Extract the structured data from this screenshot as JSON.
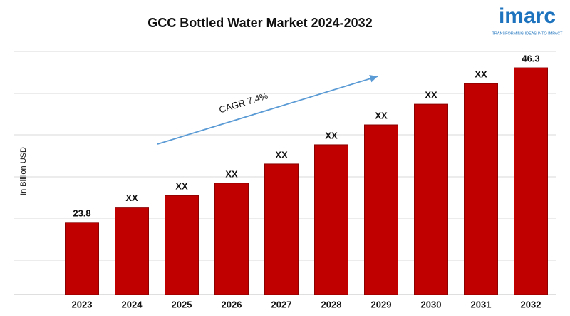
{
  "chart_data": {
    "type": "bar",
    "title": "GCC Bottled Water Market 2024-2032",
    "y_label": "In Billion USD",
    "annotation": "CAGR 7.4%",
    "logo": {
      "name": "imarc",
      "tagline": "TRANSFORMING IDEAS INTO IMPACT"
    },
    "categories": [
      "2023",
      "2024",
      "2025",
      "2026",
      "2027",
      "2028",
      "2029",
      "2030",
      "2031",
      "2032"
    ],
    "values": [
      23.8,
      26.0,
      27.7,
      29.5,
      32.3,
      35.1,
      38.0,
      41.0,
      44.0,
      46.3
    ],
    "value_labels": [
      "23.8",
      "XX",
      "XX",
      "XX",
      "XX",
      "XX",
      "XX",
      "XX",
      "XX",
      "46.3"
    ],
    "color": "#c00000",
    "ylim": [
      13.3,
      48.9
    ],
    "grid": true
  }
}
